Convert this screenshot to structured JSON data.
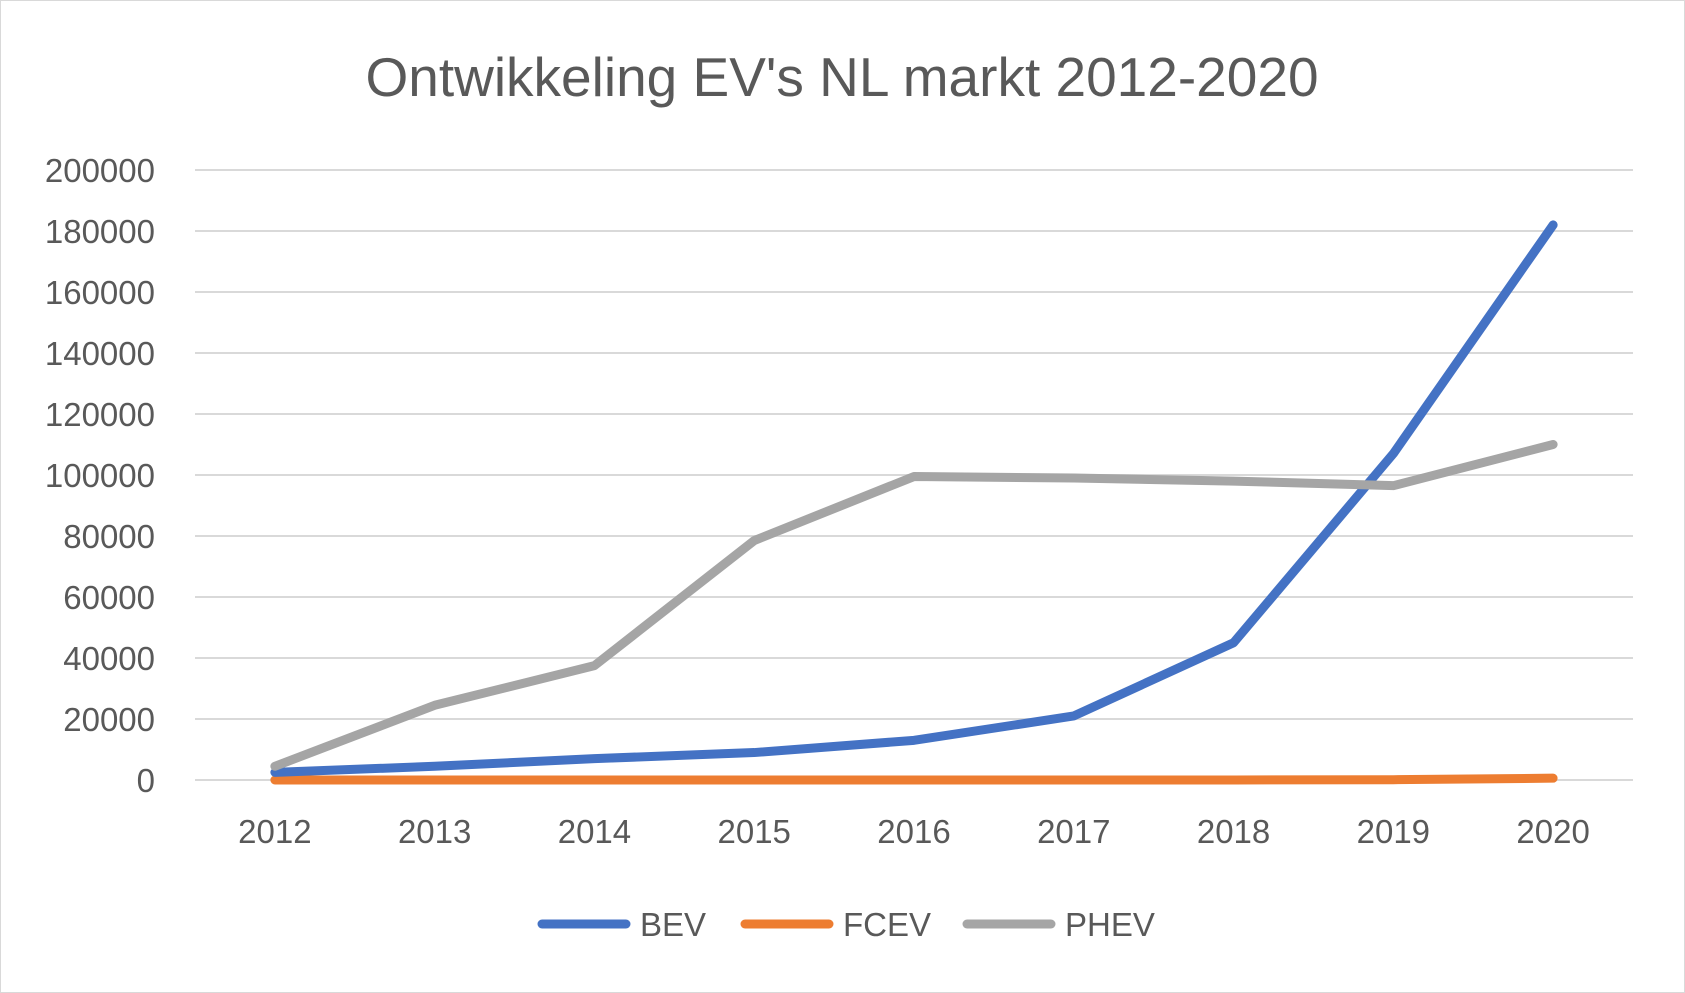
{
  "chart_data": {
    "type": "line",
    "title": "Ontwikkeling EV's NL markt 2012-2020",
    "xlabel": "",
    "ylabel": "",
    "categories": [
      "2012",
      "2013",
      "2014",
      "2015",
      "2016",
      "2017",
      "2018",
      "2019",
      "2020"
    ],
    "ylim": [
      0,
      200000
    ],
    "yticks": [
      0,
      20000,
      40000,
      60000,
      80000,
      100000,
      120000,
      140000,
      160000,
      180000,
      200000
    ],
    "grid": true,
    "legend_position": "bottom",
    "series": [
      {
        "name": "BEV",
        "color": "#4472c4",
        "values": [
          2500,
          4500,
          7000,
          9000,
          13000,
          21000,
          45000,
          107000,
          182000
        ]
      },
      {
        "name": "FCEV",
        "color": "#ed7d31",
        "values": [
          0,
          0,
          0,
          0,
          0,
          0,
          0,
          100,
          600
        ]
      },
      {
        "name": "PHEV",
        "color": "#a5a5a5",
        "values": [
          4500,
          24500,
          37500,
          78500,
          99500,
          99000,
          98000,
          96500,
          110000
        ]
      }
    ]
  }
}
